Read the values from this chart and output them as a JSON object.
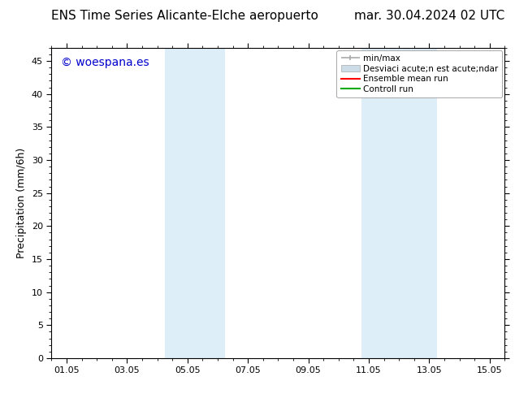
{
  "title_left": "ENS Time Series Alicante-Elche aeropuerto",
  "title_right": "mar. 30.04.2024 02 UTC",
  "ylabel": "Precipitation (mm/6h)",
  "ylim": [
    0,
    47
  ],
  "yticks": [
    0,
    5,
    10,
    15,
    20,
    25,
    30,
    35,
    40,
    45
  ],
  "xmin": 0.0,
  "xmax": 15.0,
  "xtick_labels": [
    "01.05",
    "03.05",
    "05.05",
    "07.05",
    "09.05",
    "11.05",
    "13.05",
    "15.05"
  ],
  "xtick_positions": [
    0.5,
    2.5,
    4.5,
    6.5,
    8.5,
    10.5,
    12.5,
    14.5
  ],
  "shaded_regions": [
    {
      "xmin": 3.75,
      "xmax": 5.75,
      "color": "#ddeef8"
    },
    {
      "xmin": 10.25,
      "xmax": 12.75,
      "color": "#ddeef8"
    }
  ],
  "watermark_text": "© woespana.es",
  "watermark_color": "#0000cc",
  "background_color": "#ffffff",
  "legend_label1": "min/max",
  "legend_label2": "Desviaci acute;n est acute;ndar",
  "legend_label3": "Ensemble mean run",
  "legend_label4": "Controll run",
  "legend_color1": "#aaaaaa",
  "legend_color2": "#ccdde8",
  "legend_color3": "#ff0000",
  "legend_color4": "#00aa00",
  "title_fontsize": 11,
  "axis_label_fontsize": 9,
  "tick_fontsize": 8,
  "watermark_fontsize": 10,
  "legend_fontsize": 7.5
}
